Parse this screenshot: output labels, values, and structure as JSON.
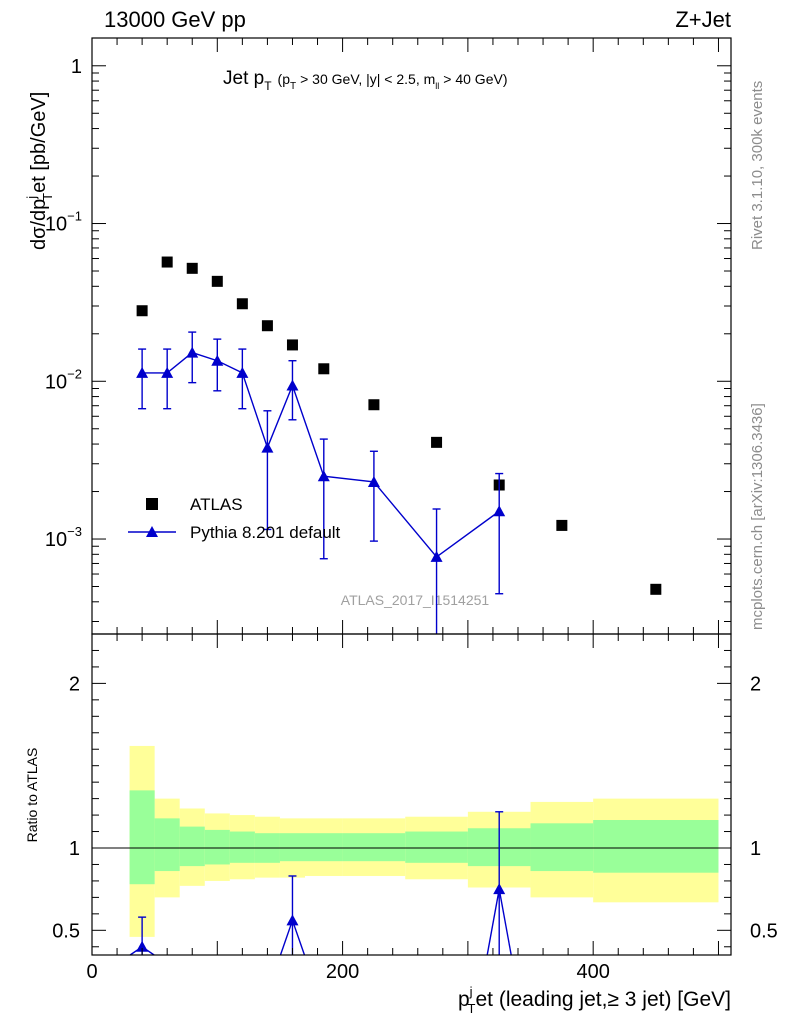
{
  "header": {
    "left": "13000 GeV pp",
    "right": "Z+Jet"
  },
  "side_texts": {
    "rivet": "Rivet 3.1.10,  300k events",
    "mcplots": "mcplots.cern.ch [arXiv:1306.3436]"
  },
  "watermark": "ATLAS_2017_I1514251",
  "chart_data": [
    {
      "type": "scatter",
      "title": {
        "main": "Jet p",
        "main_sub": "T",
        "cut_1": "(p",
        "cut_1_sub": "T",
        "cut_2": "> 30 GeV, |y| < 2.5, m",
        "cut_2_sub": "ll",
        "cut_3": "> 40 GeV)"
      },
      "ylabel": {
        "a": "dσ/dp",
        "a_sub": "T",
        "a_sup": "j",
        "b": "et [pb/GeV]"
      },
      "yscale": "log",
      "ylim": [
        0.00025,
        1.5
      ],
      "xlim": [
        0,
        510
      ],
      "yticks": [
        {
          "value": 1,
          "base": "1",
          "exp": ""
        },
        {
          "value": 0.1,
          "base": "10",
          "exp": "−1"
        },
        {
          "value": 0.01,
          "base": "10",
          "exp": "−2"
        },
        {
          "value": 0.001,
          "base": "10",
          "exp": "−3"
        }
      ],
      "legend": {
        "position": "bottom-left",
        "entries": [
          "ATLAS",
          "Pythia 8.201 default"
        ]
      },
      "series": [
        {
          "name": "ATLAS",
          "marker": "square",
          "color": "#000000",
          "x": [
            40,
            60,
            80,
            100,
            120,
            140,
            160,
            185,
            225,
            275,
            325,
            375,
            450
          ],
          "y": [
            0.028,
            0.057,
            0.052,
            0.043,
            0.031,
            0.0225,
            0.017,
            0.012,
            0.0071,
            0.0041,
            0.0022,
            0.00122,
            0.00048
          ]
        },
        {
          "name": "Pythia 8.201 default",
          "marker": "triangle",
          "color": "#0000cc",
          "x": [
            40,
            60,
            80,
            100,
            120,
            140,
            160,
            185,
            225,
            275,
            325
          ],
          "y": [
            0.0113,
            0.0113,
            0.0152,
            0.0135,
            0.0113,
            0.0038,
            0.0094,
            0.0025,
            0.0023,
            0.00077,
            0.0015
          ],
          "err_low": [
            0.0067,
            0.0067,
            0.0098,
            0.0087,
            0.0067,
            0.00115,
            0.0057,
            0.00075,
            0.00097,
            0.0002,
            0.00045
          ],
          "err_high": [
            0.016,
            0.016,
            0.0205,
            0.0185,
            0.016,
            0.0065,
            0.0135,
            0.0043,
            0.0036,
            0.00155,
            0.0026
          ]
        }
      ]
    },
    {
      "type": "scatter",
      "ylabel": "Ratio to ATLAS",
      "xlabel": {
        "a": "p",
        "a_sub": "T",
        "a_sup": "j",
        "b": "et (leading jet,≥ 3 jet) [GeV]"
      },
      "xlim": [
        0,
        510
      ],
      "ylim": [
        0.35,
        2.3
      ],
      "xticks": [
        0,
        200,
        400
      ],
      "yticks": [
        0.5,
        1,
        2
      ],
      "bands": [
        {
          "name": "total uncertainty",
          "color": "#ffff99",
          "bins": [
            {
              "x0": 30,
              "x1": 50,
              "lo": 0.46,
              "hi": 1.62
            },
            {
              "x0": 50,
              "x1": 70,
              "lo": 0.7,
              "hi": 1.3
            },
            {
              "x0": 70,
              "x1": 90,
              "lo": 0.77,
              "hi": 1.24
            },
            {
              "x0": 90,
              "x1": 110,
              "lo": 0.8,
              "hi": 1.21
            },
            {
              "x0": 110,
              "x1": 130,
              "lo": 0.81,
              "hi": 1.2
            },
            {
              "x0": 130,
              "x1": 150,
              "lo": 0.82,
              "hi": 1.19
            },
            {
              "x0": 150,
              "x1": 170,
              "lo": 0.82,
              "hi": 1.18
            },
            {
              "x0": 170,
              "x1": 200,
              "lo": 0.83,
              "hi": 1.18
            },
            {
              "x0": 200,
              "x1": 250,
              "lo": 0.83,
              "hi": 1.18
            },
            {
              "x0": 250,
              "x1": 300,
              "lo": 0.81,
              "hi": 1.19
            },
            {
              "x0": 300,
              "x1": 350,
              "lo": 0.76,
              "hi": 1.22
            },
            {
              "x0": 350,
              "x1": 400,
              "lo": 0.7,
              "hi": 1.28
            },
            {
              "x0": 400,
              "x1": 500,
              "lo": 0.67,
              "hi": 1.3
            }
          ]
        },
        {
          "name": "statistical uncertainty",
          "color": "#99ff99",
          "bins": [
            {
              "x0": 30,
              "x1": 50,
              "lo": 0.78,
              "hi": 1.35
            },
            {
              "x0": 50,
              "x1": 70,
              "lo": 0.86,
              "hi": 1.18
            },
            {
              "x0": 70,
              "x1": 90,
              "lo": 0.89,
              "hi": 1.13
            },
            {
              "x0": 90,
              "x1": 110,
              "lo": 0.9,
              "hi": 1.11
            },
            {
              "x0": 110,
              "x1": 130,
              "lo": 0.91,
              "hi": 1.1
            },
            {
              "x0": 130,
              "x1": 150,
              "lo": 0.91,
              "hi": 1.09
            },
            {
              "x0": 150,
              "x1": 170,
              "lo": 0.92,
              "hi": 1.09
            },
            {
              "x0": 170,
              "x1": 200,
              "lo": 0.92,
              "hi": 1.09
            },
            {
              "x0": 200,
              "x1": 250,
              "lo": 0.92,
              "hi": 1.09
            },
            {
              "x0": 250,
              "x1": 300,
              "lo": 0.91,
              "hi": 1.1
            },
            {
              "x0": 300,
              "x1": 350,
              "lo": 0.89,
              "hi": 1.12
            },
            {
              "x0": 350,
              "x1": 400,
              "lo": 0.86,
              "hi": 1.15
            },
            {
              "x0": 400,
              "x1": 500,
              "lo": 0.85,
              "hi": 1.17
            }
          ]
        }
      ],
      "series": [
        {
          "name": "Pythia 8.201 default",
          "marker": "triangle",
          "color": "#0000cc",
          "x": [
            40,
            160,
            325
          ],
          "y": [
            0.4,
            0.56,
            0.75
          ],
          "err_low": [
            0.3,
            0.35,
            0.3
          ],
          "err_high": [
            0.58,
            0.83,
            1.22
          ]
        }
      ]
    }
  ]
}
